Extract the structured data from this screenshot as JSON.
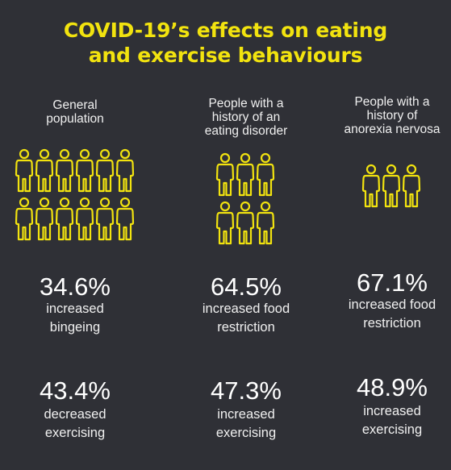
{
  "title_line1": "COVID-19’s effects on eating",
  "title_line2": "and exercise behaviours",
  "accent_color": "#f2e30f",
  "background_color": "#2f3036",
  "groups": [
    {
      "header": [
        "General",
        "population"
      ],
      "icon_count": 12,
      "stat1": {
        "value": "34.6%",
        "label": [
          "increased",
          "bingeing"
        ]
      },
      "stat2": {
        "value": "43.4%",
        "label": [
          "decreased",
          "exercising"
        ]
      }
    },
    {
      "header": [
        "People with a",
        "history of an",
        "eating disorder"
      ],
      "icon_count": 6,
      "stat1": {
        "value": "64.5%",
        "label": [
          "increased food",
          "restriction"
        ]
      },
      "stat2": {
        "value": "47.3%",
        "label": [
          "increased",
          "exercising"
        ]
      }
    },
    {
      "header": [
        "People with a",
        "history of",
        "anorexia nervosa"
      ],
      "icon_count": 3,
      "stat1": {
        "value": "67.1%",
        "label": [
          "increased food",
          "restriction"
        ]
      },
      "stat2": {
        "value": "48.9%",
        "label": [
          "increased",
          "exercising"
        ]
      }
    }
  ]
}
